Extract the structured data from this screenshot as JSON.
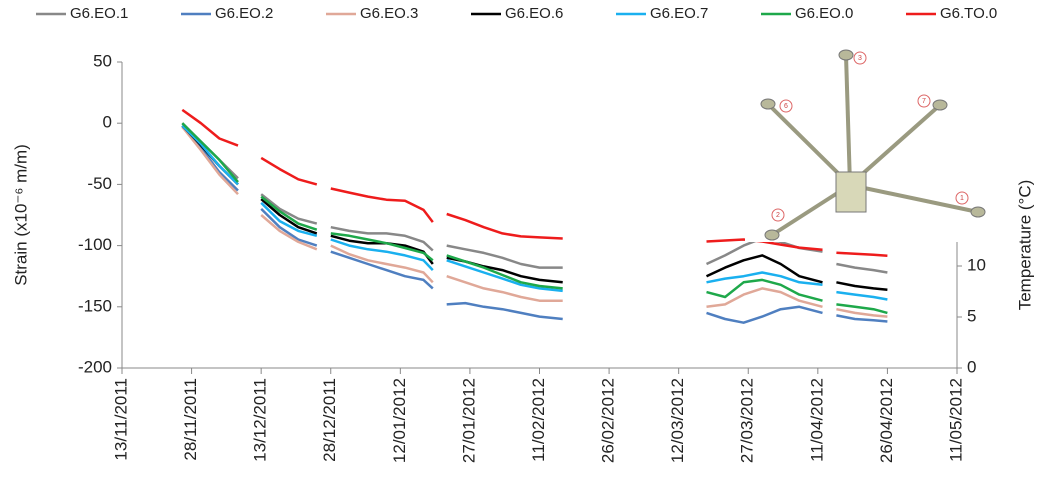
{
  "chart_data": {
    "type": "line",
    "ylabel": "Strain (x10⁻⁶ m/m)",
    "y2label": "Temperature (°C)",
    "x": [
      "26/11/2011",
      "30/11/2011",
      "04/12/2011",
      "08/12/2011",
      "11/12/2011",
      "13/12/2011",
      "17/12/2011",
      "21/12/2011",
      "25/12/2011",
      "27/12/2011",
      "28/12/2011",
      "01/01/2012",
      "05/01/2012",
      "09/01/2012",
      "13/01/2012",
      "17/01/2012",
      "19/01/2012",
      "21/01/2012",
      "22/01/2012",
      "26/01/2012",
      "30/01/2012",
      "03/02/2012",
      "07/02/2012",
      "11/02/2012",
      "16/02/2012",
      "01/03/2012",
      "18/03/2012",
      "22/03/2012",
      "26/03/2012",
      "30/03/2012",
      "03/04/2012",
      "07/04/2012",
      "12/04/2012",
      "14/04/2012",
      "15/04/2012",
      "19/04/2012",
      "23/04/2012",
      "26/04/2012"
    ],
    "xlim": [
      "13/11/2011",
      "11/05/2012"
    ],
    "xticks": [
      "13/11/2011",
      "28/11/2011",
      "13/12/2011",
      "28/12/2011",
      "12/01/2012",
      "27/01/2012",
      "11/02/2012",
      "26/02/2012",
      "12/03/2012",
      "27/03/2012",
      "11/04/2012",
      "26/04/2012",
      "11/05/2012"
    ],
    "ylim": [
      -200,
      50
    ],
    "yticks": [
      -200,
      -150,
      -100,
      -50,
      0,
      50
    ],
    "y2lim": [
      0,
      30
    ],
    "y2ticks": [
      0,
      5,
      10
    ],
    "series": [
      {
        "name": "G6.EO.1",
        "color": "#888888",
        "values": [
          0,
          -15,
          -30,
          -45,
          null,
          -58,
          -70,
          -78,
          -82,
          null,
          -85,
          -88,
          -90,
          -90,
          -92,
          -97,
          -104,
          null,
          -100,
          -103,
          -106,
          -110,
          -115,
          -118,
          -118,
          null,
          -115,
          -108,
          -100,
          -94,
          -97,
          -102,
          -105,
          null,
          -115,
          -118,
          -120,
          -122
        ]
      },
      {
        "name": "G6.EO.2",
        "color": "#4f7fc0",
        "values": [
          -3,
          -20,
          -40,
          -55,
          null,
          -70,
          -85,
          -95,
          -100,
          null,
          -105,
          -110,
          -115,
          -120,
          -125,
          -128,
          -135,
          null,
          -148,
          -147,
          -150,
          -152,
          -155,
          -158,
          -160,
          null,
          -155,
          -160,
          -163,
          -158,
          -152,
          -150,
          -155,
          null,
          -157,
          -160,
          -161,
          -162
        ]
      },
      {
        "name": "G6.EO.3",
        "color": "#e0a898",
        "values": [
          -3,
          -22,
          -42,
          -58,
          null,
          -75,
          -88,
          -97,
          -103,
          null,
          -100,
          -107,
          -112,
          -115,
          -118,
          -122,
          -130,
          null,
          -125,
          -130,
          -135,
          -138,
          -142,
          -145,
          -145,
          null,
          -150,
          -148,
          -140,
          -135,
          -138,
          -145,
          -150,
          null,
          -152,
          -155,
          -157,
          -158
        ]
      },
      {
        "name": "G6.EO.6",
        "color": "#000000",
        "values": [
          -2,
          -18,
          -35,
          -50,
          null,
          -62,
          -75,
          -85,
          -90,
          null,
          -92,
          -96,
          -98,
          -98,
          -100,
          -105,
          -115,
          null,
          -110,
          -113,
          -117,
          -120,
          -125,
          -128,
          -130,
          null,
          -125,
          -118,
          -112,
          -108,
          -115,
          -125,
          -130,
          null,
          -130,
          -133,
          -135,
          -136
        ]
      },
      {
        "name": "G6.EO.7",
        "color": "#1ab0ef",
        "values": [
          -2,
          -17,
          -35,
          -50,
          null,
          -65,
          -80,
          -88,
          -92,
          null,
          -95,
          -100,
          -103,
          -105,
          -108,
          -112,
          -120,
          null,
          -112,
          -117,
          -122,
          -127,
          -132,
          -135,
          -137,
          null,
          -130,
          -127,
          -125,
          -122,
          -125,
          -130,
          -132,
          null,
          -138,
          -140,
          -142,
          -144
        ]
      },
      {
        "name": "G6.EO.0",
        "color": "#1ea84a",
        "values": [
          0,
          -15,
          -30,
          -48,
          null,
          -60,
          -72,
          -82,
          -87,
          null,
          -90,
          -92,
          -95,
          -98,
          -102,
          -106,
          -112,
          null,
          -108,
          -113,
          -118,
          -124,
          -130,
          -133,
          -135,
          null,
          -138,
          -142,
          -130,
          -128,
          -132,
          -140,
          -145,
          null,
          -148,
          -150,
          -152,
          -155
        ]
      },
      {
        "name": "G6.TO.0",
        "color": "#ee1c1c",
        "axis": "y2",
        "values": [
          25.3,
          24,
          22.5,
          21.8,
          null,
          20.6,
          19.5,
          18.5,
          18,
          null,
          17.6,
          17.2,
          16.8,
          16.5,
          16.4,
          15.5,
          14.3,
          null,
          15.1,
          14.5,
          13.8,
          13.2,
          12.9,
          12.8,
          12.7,
          null,
          12.4,
          12.5,
          12.6,
          12.4,
          12.1,
          11.8,
          11.6,
          null,
          11.3,
          11.2,
          11.1,
          11
        ]
      }
    ],
    "diagram_labels": [
      "1",
      "2",
      "3",
      "6",
      "7"
    ]
  }
}
